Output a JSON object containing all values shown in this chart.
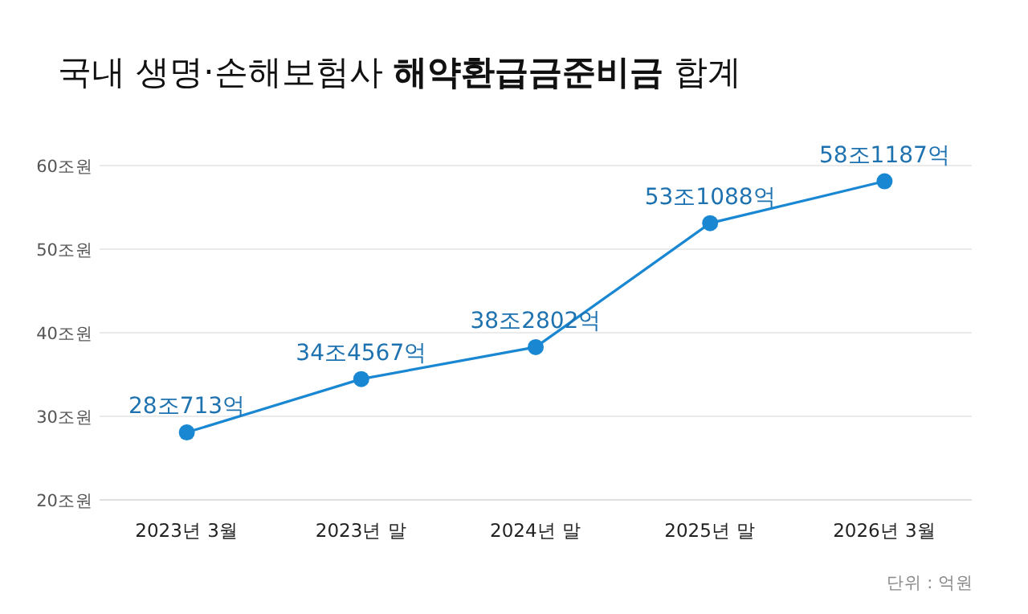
{
  "chart_data": {
    "type": "line",
    "title": "국내 생명·손해보험사 **해약환급금준비금** 합계",
    "categories": [
      "2023년 3월",
      "2023년 말",
      "2024년 말",
      "2025년 말",
      "2026년 3월"
    ],
    "series": [
      {
        "color": "#1a87d2",
        "values": [
          28.0713,
          34.4567,
          38.2802,
          53.1088,
          58.1187
        ],
        "value_labels": [
          "28조713억",
          "34조4567억",
          "38조2802억",
          "53조1088억",
          "58조1187억"
        ]
      }
    ],
    "ylim": [
      20,
      60
    ],
    "yticks": [
      {
        "value": 20,
        "label": "20조원"
      },
      {
        "value": 30,
        "label": "30조원"
      },
      {
        "value": 40,
        "label": "40조원"
      },
      {
        "value": 50,
        "label": "50조원"
      },
      {
        "value": 60,
        "label": "60조원"
      }
    ],
    "grid": "y",
    "marker": "circle",
    "line_style": "solid",
    "annotations": [
      "단위 : 억원"
    ]
  }
}
